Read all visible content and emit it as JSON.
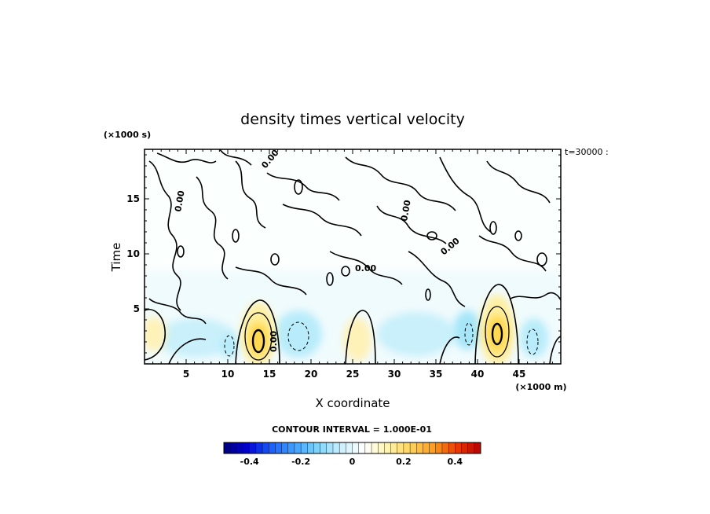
{
  "chart_data": {
    "type": "heatmap",
    "title": "density times vertical velocity",
    "xlabel": "X coordinate",
    "ylabel": "Time",
    "x_unit": "(×1000 m)",
    "y_unit": "(×1000 s)",
    "time_label": "t=30000 :",
    "xlim": [
      0,
      50
    ],
    "ylim": [
      0,
      19.5
    ],
    "x_ticks": [
      5,
      10,
      15,
      20,
      25,
      30,
      35,
      40,
      45
    ],
    "y_ticks": [
      5,
      10,
      15
    ],
    "contour_interval_label": "CONTOUR INTERVAL = 1.000E-01",
    "contour_label": "0.00",
    "colorbar": {
      "range": [
        -0.5,
        0.5
      ],
      "ticks": [
        "-0.4",
        "-0.2",
        "0",
        "0.2",
        "0.4"
      ],
      "colors": [
        "#00007a",
        "#0000d0",
        "#1a5cff",
        "#3fa0ff",
        "#7fd2f7",
        "#c8f0ff",
        "#ffffff",
        "#fff4b0",
        "#ffd35a",
        "#ff9a1e",
        "#e83a00",
        "#b80000"
      ]
    },
    "features": [
      {
        "kind": "positive-max",
        "x": 13.5,
        "y": 2.2,
        "value": 0.2
      },
      {
        "kind": "positive-max",
        "x": 42.5,
        "y": 2.8,
        "value": 0.2
      },
      {
        "kind": "negative-min",
        "x": 18.5,
        "y": 2.5,
        "value": -0.1
      },
      {
        "kind": "negative-min",
        "x": 39.0,
        "y": 2.5,
        "value": -0.1
      },
      {
        "kind": "negative-min",
        "x": 46.5,
        "y": 2.0,
        "value": -0.1
      },
      {
        "kind": "negative-min",
        "x": 10.0,
        "y": 1.5,
        "value": -0.1
      },
      {
        "kind": "weak-positive",
        "x": 25.5,
        "y": 2.0,
        "value": 0.05
      },
      {
        "kind": "weak-positive",
        "x": 1.0,
        "y": 2.5,
        "value": 0.05
      }
    ]
  }
}
